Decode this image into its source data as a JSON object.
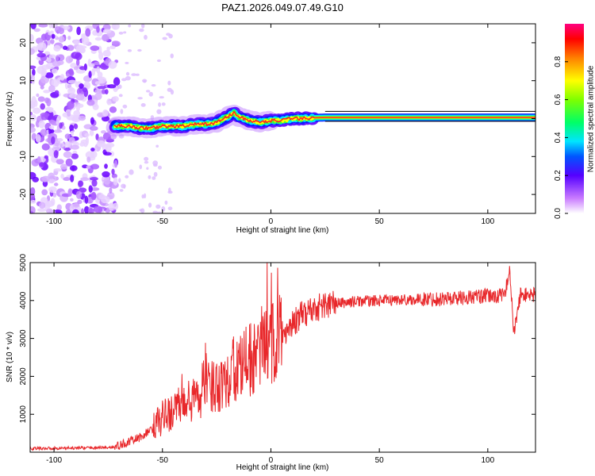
{
  "title": "PAZ1.2026.049.07.49.G10",
  "chart_data": [
    {
      "type": "heatmap",
      "name": "spectrogram",
      "xlabel": "Height of straight line (km)",
      "ylabel": "Frequency (Hz)",
      "xlim": [
        -111,
        122
      ],
      "ylim": [
        -25,
        25
      ],
      "xticks": [
        -100,
        -50,
        0,
        50,
        100
      ],
      "yticks": [
        -20,
        -10,
        0,
        10,
        20
      ],
      "ridge": {
        "x": [
          -72,
          -65,
          -60,
          -55,
          -50,
          -45,
          -40,
          -35,
          -30,
          -25,
          -20,
          -17,
          -15,
          -10,
          -5,
          0,
          5,
          10,
          15,
          20,
          25,
          30,
          40,
          60,
          80,
          100,
          110,
          122
        ],
        "frequency": [
          -2,
          -2,
          -2.5,
          -2.5,
          -2,
          -2,
          -2,
          -1.5,
          -1.5,
          -1,
          0.5,
          1.5,
          0.5,
          -0.5,
          -1,
          -0.5,
          -0.5,
          0,
          0,
          0.2,
          0.3,
          0.3,
          0.3,
          0.3,
          0.3,
          0.3,
          0.3,
          0.3
        ]
      },
      "noise_region_x": [
        -111,
        -71
      ],
      "colorbar": {
        "label": "Normalized spectral amplitude",
        "ticks": [
          "0.0",
          "0.2",
          "0.4",
          "0.6",
          "0.8"
        ],
        "range": [
          0,
          1
        ]
      }
    },
    {
      "type": "line",
      "name": "snr",
      "xlabel": "Height of straight line (km)",
      "ylabel": "SNR (10 * v/v)",
      "xlim": [
        -111,
        122
      ],
      "ylim": [
        0,
        5000
      ],
      "xticks": [
        -100,
        -50,
        0,
        50,
        100
      ],
      "yticks": [
        1000,
        2000,
        3000,
        4000,
        5000
      ],
      "color": "#e8272a",
      "x": [
        -111,
        -90,
        -72,
        -65,
        -60,
        -55,
        -50,
        -45,
        -40,
        -35,
        -30,
        -25,
        -20,
        -15,
        -10,
        -5,
        0,
        5,
        10,
        15,
        20,
        25,
        30,
        40,
        50,
        60,
        70,
        80,
        90,
        95,
        100,
        105,
        108,
        110,
        112,
        115,
        122
      ],
      "snr": [
        100,
        110,
        130,
        280,
        400,
        600,
        900,
        1100,
        1250,
        1400,
        1600,
        1800,
        2000,
        2200,
        2400,
        2600,
        2850,
        3100,
        3400,
        3650,
        3800,
        3880,
        3920,
        3980,
        4000,
        4020,
        4030,
        4050,
        4080,
        4100,
        4120,
        4120,
        4150,
        4900,
        3100,
        4150,
        4150
      ]
    }
  ]
}
